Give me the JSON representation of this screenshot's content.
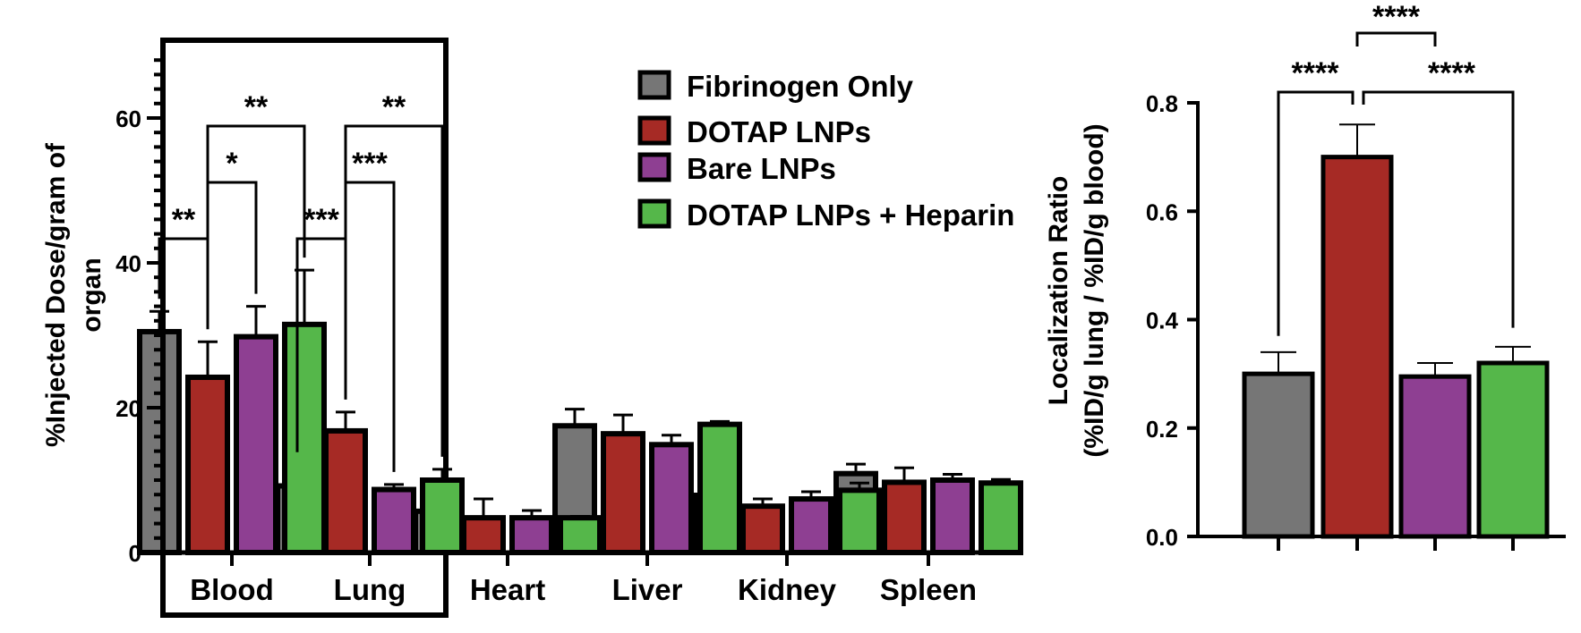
{
  "colors": {
    "Fibrinogen Only": "#767676",
    "DOTAP LNPs": "#a62a25",
    "Bare LNPs": "#8e3f92",
    "DOTAP LNPs + Heparin": "#55b74a"
  },
  "chart_data": [
    {
      "type": "bar",
      "title": "",
      "xlabel": "",
      "ylabel": "%Injected Dose/gram of organ",
      "ylabel_lines": [
        "%Injected Dose/gram of",
        "organ"
      ],
      "ylim": [
        0,
        70
      ],
      "yticks": [
        0,
        20,
        40,
        60
      ],
      "ytick_labels": [
        "0",
        "20",
        "40",
        "60"
      ],
      "minor_tick_step": 2,
      "grid": false,
      "legend_position": "top-right",
      "categories": [
        "Blood",
        "Lung",
        "Heart",
        "Liver",
        "Kidney",
        "Spleen"
      ],
      "highlight_box_categories": [
        "Blood",
        "Lung"
      ],
      "series": [
        {
          "name": "Fibrinogen Only",
          "values": [
            30.5,
            9.2,
            5.7,
            17.5,
            7.9,
            10.9
          ],
          "errors": [
            2.8,
            1.2,
            1.1,
            2.3,
            0.6,
            1.3
          ]
        },
        {
          "name": "DOTAP LNPs",
          "values": [
            24.2,
            16.8,
            4.8,
            16.4,
            6.4,
            9.7
          ],
          "errors": [
            4.9,
            2.6,
            2.6,
            2.6,
            1.0,
            2.0
          ]
        },
        {
          "name": "Bare LNPs",
          "values": [
            29.8,
            8.7,
            4.8,
            14.9,
            7.4,
            10.0
          ],
          "errors": [
            4.2,
            0.7,
            1.0,
            1.3,
            1.0,
            0.8
          ]
        },
        {
          "name": "DOTAP LNPs + Heparin",
          "values": [
            31.5,
            10.0,
            4.8,
            17.7,
            8.6,
            9.6
          ],
          "errors": [
            7.5,
            1.5,
            0.2,
            0.4,
            1.0,
            0.5
          ]
        }
      ],
      "significance": [
        {
          "category": "Blood",
          "from": "Fibrinogen Only",
          "to": "DOTAP LNPs",
          "label": "**",
          "level": 0
        },
        {
          "category": "Blood",
          "from": "DOTAP LNPs",
          "to": "Bare LNPs",
          "label": "*",
          "level": 1
        },
        {
          "category": "Blood",
          "from": "DOTAP LNPs",
          "to": "DOTAP LNPs + Heparin",
          "label": "**",
          "level": 2
        },
        {
          "category": "Lung",
          "from": "Fibrinogen Only",
          "to": "DOTAP LNPs",
          "label": "***",
          "level": 0
        },
        {
          "category": "Lung",
          "from": "DOTAP LNPs",
          "to": "Bare LNPs",
          "label": "***",
          "level": 1
        },
        {
          "category": "Lung",
          "from": "DOTAP LNPs",
          "to": "DOTAP LNPs + Heparin",
          "label": "**",
          "level": 2
        }
      ]
    },
    {
      "type": "bar",
      "title": "",
      "xlabel": "",
      "ylabel": "Localization Ratio (%ID/g lung / %ID/g blood)",
      "ylabel_lines": [
        "Localization Ratio",
        "(%ID/g lung / %ID/g blood)"
      ],
      "ylim": [
        0,
        0.8
      ],
      "yticks": [
        0.0,
        0.2,
        0.4,
        0.6,
        0.8
      ],
      "ytick_labels": [
        "0.0",
        "0.2",
        "0.4",
        "0.6",
        "0.8"
      ],
      "grid": false,
      "categories": [
        "Fibrinogen Only",
        "DOTAP LNPs",
        "Bare LNPs",
        "DOTAP LNPs + Heparin"
      ],
      "values": [
        0.3,
        0.7,
        0.295,
        0.32
      ],
      "errors": [
        0.04,
        0.06,
        0.025,
        0.03
      ],
      "significance": [
        {
          "from": "Fibrinogen Only",
          "to": "DOTAP LNPs",
          "label": "****",
          "level": 0
        },
        {
          "from": "DOTAP LNPs",
          "to": "DOTAP LNPs + Heparin",
          "label": "****",
          "level": 0
        },
        {
          "from": "DOTAP LNPs",
          "to": "Bare LNPs",
          "label": "****",
          "level": 1
        }
      ]
    }
  ]
}
